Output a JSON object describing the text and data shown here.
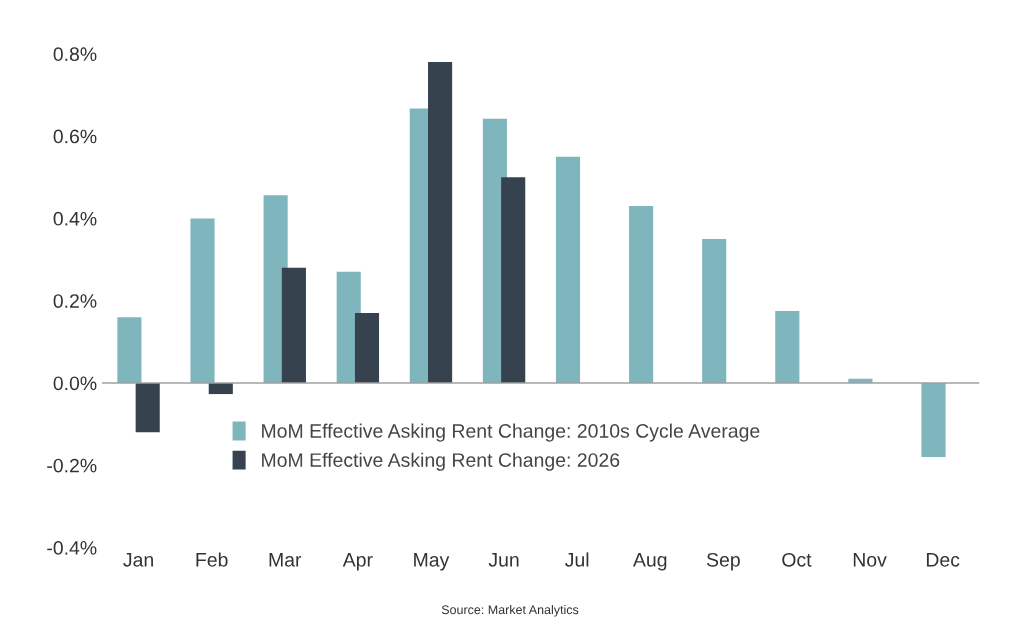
{
  "chart_data": {
    "type": "bar",
    "categories": [
      "Jan",
      "Feb",
      "Mar",
      "Apr",
      "May",
      "Jun",
      "Jul",
      "Aug",
      "Sep",
      "Oct",
      "Nov",
      "Dec"
    ],
    "series": [
      {
        "name": "MoM Effective Asking Rent Change: 2010s Cycle Average",
        "color": "#7fb5bc",
        "values": [
          0.16,
          0.4,
          0.456,
          0.27,
          0.667,
          0.642,
          0.55,
          0.43,
          0.35,
          0.175,
          0.01,
          -0.18
        ]
      },
      {
        "name": "MoM Effective Asking Rent Change: 2026",
        "color": "#36424d",
        "values": [
          -0.12,
          -0.027,
          0.28,
          0.17,
          0.78,
          0.5,
          null,
          null,
          null,
          null,
          null,
          null
        ]
      }
    ],
    "ylim": [
      -0.4,
      0.8
    ],
    "yticks": [
      {
        "value": -0.4,
        "label": "-0.4%"
      },
      {
        "value": -0.2,
        "label": "-0.2%"
      },
      {
        "value": 0.0,
        "label": "0.0%"
      },
      {
        "value": 0.2,
        "label": "0.2%"
      },
      {
        "value": 0.4,
        "label": "0.4%"
      },
      {
        "value": 0.6,
        "label": "0.6%"
      },
      {
        "value": 0.8,
        "label": "0.8%"
      }
    ],
    "ref_lines": [
      {
        "axis": "y",
        "value": 0,
        "label": null,
        "color": "#a0a0a0"
      }
    ],
    "legend": "bottom",
    "grid": false,
    "annotations": [
      "Source: Market Analytics"
    ]
  }
}
